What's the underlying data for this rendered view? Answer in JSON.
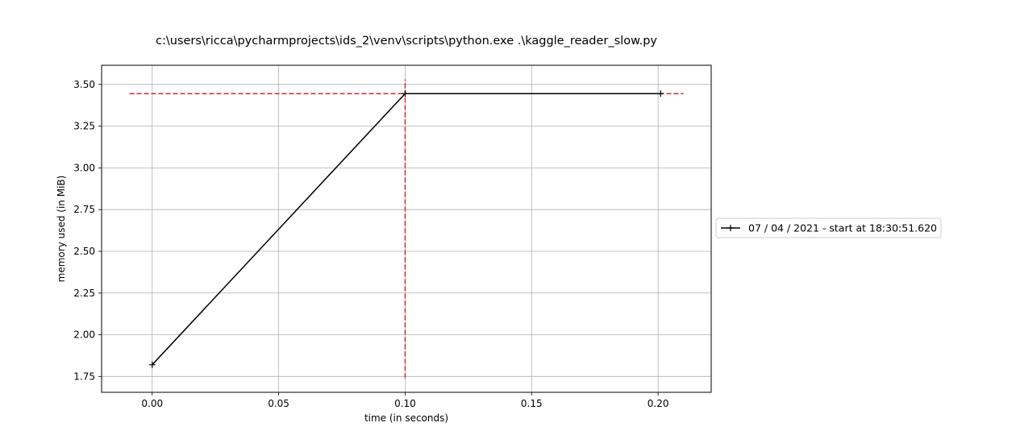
{
  "chart_data": {
    "type": "line",
    "title": "c:\\users\\ricca\\pycharmprojects\\ids_2\\venv\\scripts\\python.exe .\\kaggle_reader_slow.py",
    "xlabel": "time (in seconds)",
    "ylabel": "memory used (in MiB)",
    "xlim": [
      -0.02,
      0.221
    ],
    "ylim": [
      1.655,
      3.615
    ],
    "xticks": [
      0.0,
      0.05,
      0.1,
      0.15,
      0.2
    ],
    "xtick_labels": [
      "0.00",
      "0.05",
      "0.10",
      "0.15",
      "0.20"
    ],
    "yticks": [
      1.75,
      2.0,
      2.25,
      2.5,
      2.75,
      3.0,
      3.25,
      3.5
    ],
    "ytick_labels": [
      "1.75",
      "2.00",
      "2.25",
      "2.50",
      "2.75",
      "3.00",
      "3.25",
      "3.50"
    ],
    "grid": true,
    "legend_position": "outside-right",
    "series": [
      {
        "name": "07 / 04 / 2021 - start at 18:30:51.620",
        "color": "#000000",
        "marker": "+",
        "x": [
          0.0,
          0.1,
          0.201
        ],
        "y": [
          1.82,
          3.445,
          3.445
        ]
      }
    ],
    "reference_lines": [
      {
        "orientation": "horizontal",
        "value": 3.445,
        "from": -0.009,
        "to": 0.21,
        "color": "#d62728",
        "style": "dashed"
      },
      {
        "orientation": "vertical",
        "value": 0.1,
        "from": 1.74,
        "to": 3.53,
        "color": "#d62728",
        "style": "dashed"
      }
    ]
  }
}
